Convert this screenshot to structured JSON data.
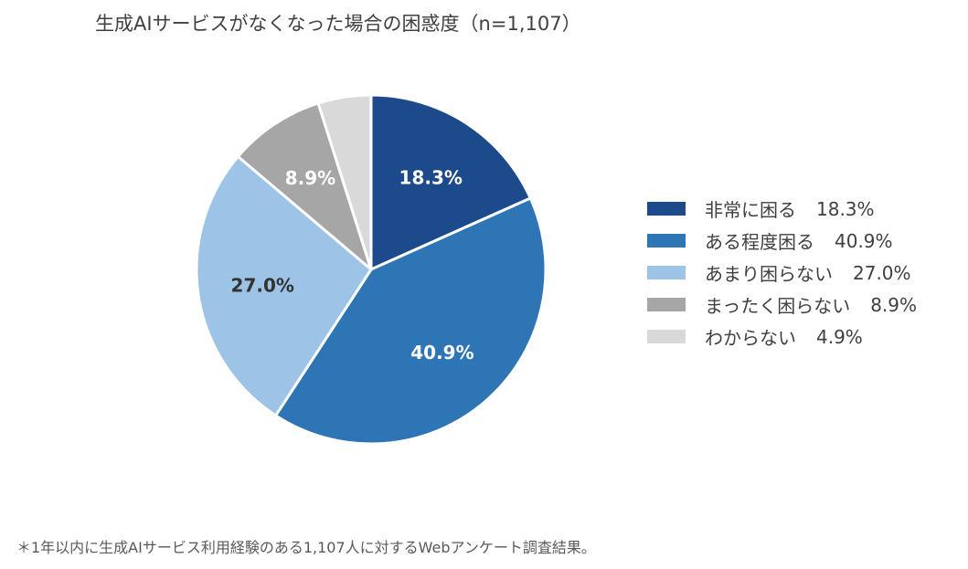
{
  "chart_data": {
    "type": "pie",
    "title": "生成AIサービスがなくなった場合の困惑度（n=1,107）",
    "categories": [
      "非常に困る",
      "ある程度困る",
      "あまり困らない",
      "まったく困らない",
      "わからない"
    ],
    "values": [
      18.3,
      40.9,
      27.0,
      8.9,
      4.9
    ],
    "value_labels": [
      "18.3%",
      "40.9%",
      "27.0%",
      "8.9%",
      ""
    ],
    "legend_values": [
      "18.3%",
      "40.9%",
      "27.0%",
      "8.9%",
      "4.9%"
    ],
    "colors": [
      "#1c4a8a",
      "#2e75b6",
      "#9dc3e6",
      "#a6a6a6",
      "#d9d9d9"
    ],
    "label_colors": [
      "#ffffff",
      "#ffffff",
      "#333333",
      "#ffffff",
      "#333333"
    ],
    "start_angle_deg": 0,
    "direction": "clockwise",
    "legend_position": "right"
  },
  "footnote": "＊1年以内に生成AIサービス利用経験のある1,107人に対するWebアンケート調査結果。"
}
